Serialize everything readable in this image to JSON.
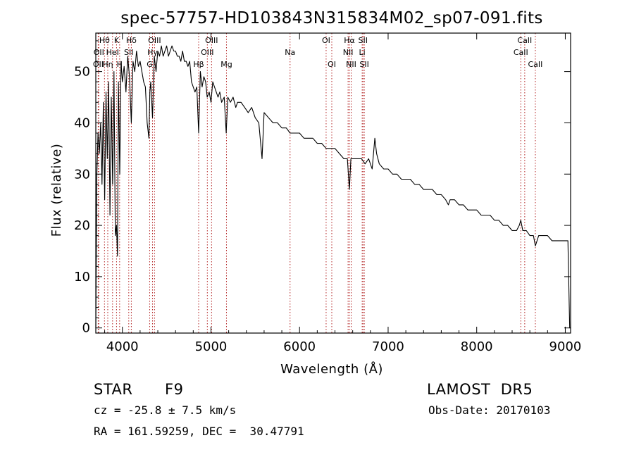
{
  "chart_data": {
    "type": "line",
    "title": "spec-57757-HD103843N315834M02_sp07-091.fits",
    "xlabel": "Wavelength (Å)",
    "ylabel": "Flux (relative)",
    "xlim": [
      3700,
      9060
    ],
    "ylim": [
      -1,
      57.5
    ],
    "x_ticks": [
      4000,
      5000,
      6000,
      7000,
      8000,
      9000
    ],
    "y_ticks": [
      0,
      10,
      20,
      30,
      40,
      50
    ],
    "grid": false,
    "line_color": "#000000",
    "marker_color": "#b22222",
    "series": [
      {
        "x": [
          3700,
          3712,
          3725,
          3740,
          3755,
          3770,
          3785,
          3800,
          3815,
          3830,
          3845,
          3860,
          3875,
          3890,
          3905,
          3920,
          3934,
          3945,
          3955,
          3970,
          3985,
          4000,
          4020,
          4040,
          4060,
          4080,
          4101,
          4120,
          4140,
          4160,
          4180,
          4200,
          4220,
          4240,
          4260,
          4280,
          4300,
          4310,
          4320,
          4340,
          4360,
          4380,
          4400,
          4420,
          4440,
          4460,
          4480,
          4500,
          4520,
          4540,
          4560,
          4580,
          4600,
          4620,
          4640,
          4660,
          4680,
          4700,
          4720,
          4740,
          4760,
          4780,
          4800,
          4820,
          4840,
          4861,
          4880,
          4900,
          4920,
          4940,
          4957,
          4980,
          5000,
          5020,
          5040,
          5060,
          5080,
          5100,
          5120,
          5150,
          5172,
          5190,
          5220,
          5250,
          5280,
          5300,
          5340,
          5380,
          5420,
          5460,
          5500,
          5540,
          5577,
          5600,
          5650,
          5700,
          5750,
          5800,
          5850,
          5893,
          5950,
          6000,
          6050,
          6100,
          6150,
          6200,
          6250,
          6300,
          6350,
          6400,
          6450,
          6500,
          6540,
          6563,
          6580,
          6620,
          6660,
          6700,
          6740,
          6780,
          6820,
          6850,
          6870,
          6900,
          6950,
          7000,
          7050,
          7100,
          7150,
          7200,
          7250,
          7300,
          7350,
          7400,
          7450,
          7500,
          7550,
          7600,
          7650,
          7680,
          7700,
          7750,
          7800,
          7850,
          7900,
          7950,
          8000,
          8050,
          8100,
          8150,
          8200,
          8250,
          8300,
          8350,
          8400,
          8450,
          8480,
          8498,
          8520,
          8542,
          8560,
          8600,
          8640,
          8662,
          8700,
          8750,
          8800,
          8850,
          8900,
          8950,
          9000,
          9030,
          9050,
          9060
        ],
        "y": [
          0,
          30,
          38,
          34,
          40,
          28,
          44,
          25,
          46,
          33,
          48,
          22,
          45,
          28,
          50,
          18,
          20,
          14,
          48,
          30,
          52,
          48,
          51,
          46,
          53,
          49,
          40,
          52,
          50,
          54,
          51,
          52,
          50,
          48,
          47,
          40,
          37,
          46,
          48,
          41,
          53,
          50,
          54,
          53,
          55,
          53,
          54,
          55,
          53,
          54,
          55,
          54,
          54,
          53,
          53,
          52,
          54,
          52,
          52,
          51,
          52,
          48,
          47,
          46,
          47,
          38,
          50,
          47,
          49,
          48,
          45,
          46,
          44,
          48,
          47,
          46,
          45,
          46,
          44,
          45,
          38,
          45,
          44,
          45,
          43,
          44,
          44,
          43,
          42,
          43,
          41,
          40,
          33,
          42,
          41,
          40,
          40,
          39,
          39,
          38,
          38,
          38,
          37,
          37,
          37,
          36,
          36,
          35,
          35,
          35,
          34,
          33,
          33,
          27,
          33,
          33,
          33,
          33,
          32,
          33,
          31,
          37,
          34,
          32,
          31,
          31,
          30,
          30,
          29,
          29,
          29,
          28,
          28,
          27,
          27,
          27,
          26,
          26,
          25,
          24,
          25,
          25,
          24,
          24,
          23,
          23,
          23,
          22,
          22,
          22,
          21,
          21,
          20,
          20,
          19,
          19,
          20,
          21,
          19,
          19,
          19,
          18,
          18,
          16,
          18,
          18,
          18,
          17,
          17,
          17,
          17,
          17,
          0,
          0
        ]
      }
    ],
    "line_markers": [
      {
        "wl": 3727,
        "label": "OII",
        "row": 3
      },
      {
        "wl": 3734,
        "label": "OII",
        "row": 2
      },
      {
        "wl": 3798,
        "label": "Hθ",
        "row": 1
      },
      {
        "wl": 3835,
        "label": "Hη",
        "row": 3
      },
      {
        "wl": 3889,
        "label": "HeI",
        "row": 2
      },
      {
        "wl": 3934,
        "label": "K",
        "row": 1
      },
      {
        "wl": 3969,
        "label": "H",
        "row": 3
      },
      {
        "wl": 4072,
        "label": "SII",
        "row": 2
      },
      {
        "wl": 4101,
        "label": "Hδ",
        "row": 1
      },
      {
        "wl": 4340,
        "label": "Hγ",
        "row": 2
      },
      {
        "wl": 4363,
        "label": "OIII",
        "row": 1
      },
      {
        "wl": 4308,
        "label": "G",
        "row": 3
      },
      {
        "wl": 4861,
        "label": "Hβ",
        "row": 3
      },
      {
        "wl": 4959,
        "label": "OIII",
        "row": 2
      },
      {
        "wl": 5007,
        "label": "OIII",
        "row": 1
      },
      {
        "wl": 5175,
        "label": "Mg",
        "row": 3
      },
      {
        "wl": 5893,
        "label": "Na",
        "row": 2
      },
      {
        "wl": 6300,
        "label": "OI",
        "row": 1
      },
      {
        "wl": 6364,
        "label": "OI",
        "row": 3
      },
      {
        "wl": 6548,
        "label": "NII",
        "row": 2
      },
      {
        "wl": 6563,
        "label": "Hα",
        "row": 1
      },
      {
        "wl": 6583,
        "label": "NII",
        "row": 3
      },
      {
        "wl": 6707,
        "label": "Li",
        "row": 2
      },
      {
        "wl": 6716,
        "label": "SII",
        "row": 1
      },
      {
        "wl": 6731,
        "label": "SII",
        "row": 3
      },
      {
        "wl": 8498,
        "label": "CaII",
        "row": 2
      },
      {
        "wl": 8542,
        "label": "CaII",
        "row": 1
      },
      {
        "wl": 8662,
        "label": "CaII",
        "row": 3
      }
    ]
  },
  "info": {
    "object_class": "STAR",
    "subclass": "F9",
    "survey": "LAMOST  DR5",
    "cz": "cz = -25.8 ± 7.5 km/s",
    "obs_date": "Obs-Date: 20170103",
    "coords": "RA = 161.59259, DEC =  30.47791"
  }
}
